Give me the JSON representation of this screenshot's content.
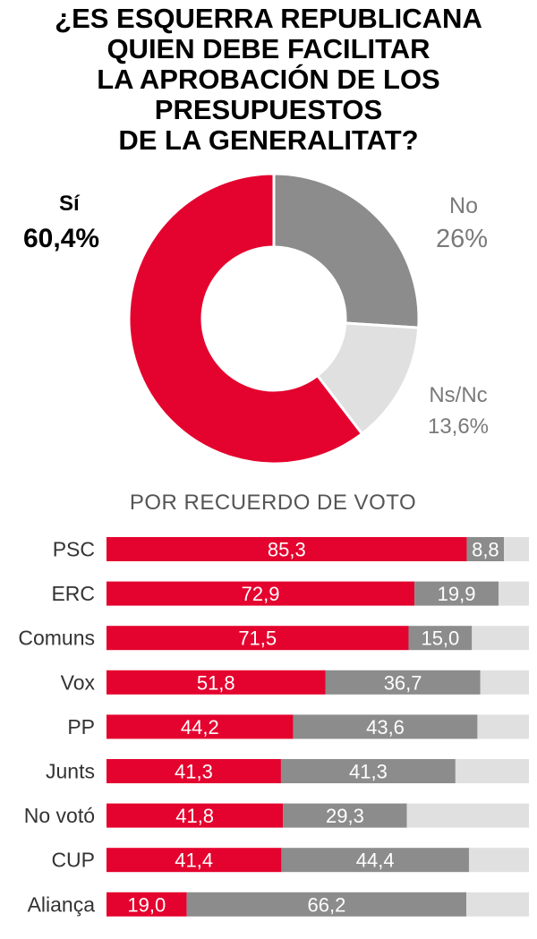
{
  "title": {
    "lines": [
      "¿ES ESQUERRA REPUBLICANA",
      "QUIEN DEBE FACILITAR",
      "LA APROBACIÓN DE LOS",
      "PRESUPUESTOS",
      "DE LA GENERALITAT?"
    ]
  },
  "colors": {
    "si": "#e4032e",
    "no": "#8c8c8c",
    "nsnc": "#e0e0e0"
  },
  "pie_labels": {
    "si_name": "Sí",
    "si_value": "60,4%",
    "no_name": "No",
    "no_value": "26%",
    "ns_name": "Ns/Nc",
    "ns_value": "13,6%"
  },
  "subtitle": "POR RECUERDO DE VOTO",
  "chart_data": [
    {
      "type": "pie",
      "donut": true,
      "slices": [
        {
          "label": "Sí",
          "value": 60.4,
          "color": "#e4032e"
        },
        {
          "label": "No",
          "value": 26,
          "color": "#8c8c8c"
        },
        {
          "label": "Ns/Nc",
          "value": 13.6,
          "color": "#e0e0e0"
        }
      ]
    },
    {
      "type": "bar",
      "orientation": "horizontal",
      "stacked": true,
      "xlim": [
        0,
        100
      ],
      "categories": [
        "PSC",
        "ERC",
        "Comuns",
        "Vox",
        "PP",
        "Junts",
        "No votó",
        "CUP",
        "Aliança"
      ],
      "series": [
        {
          "name": "Sí",
          "values": [
            85.3,
            72.9,
            71.5,
            51.8,
            44.2,
            41.3,
            41.8,
            41.4,
            19.0
          ],
          "labels": [
            "85,3",
            "72,9",
            "71,5",
            "51,8",
            "44,2",
            "41,3",
            "41,8",
            "41,4",
            "19,0"
          ]
        },
        {
          "name": "No",
          "values": [
            8.8,
            19.9,
            15.0,
            36.7,
            43.6,
            41.3,
            29.3,
            44.4,
            66.2
          ],
          "labels": [
            "8,8",
            "19,9",
            "15,0",
            "36,7",
            "43,6",
            "41,3",
            "29,3",
            "44,4",
            "66,2"
          ]
        },
        {
          "name": "Ns/Nc",
          "values": [
            5.9,
            7.2,
            13.5,
            11.5,
            12.2,
            17.4,
            28.9,
            14.2,
            14.8
          ]
        }
      ]
    }
  ]
}
